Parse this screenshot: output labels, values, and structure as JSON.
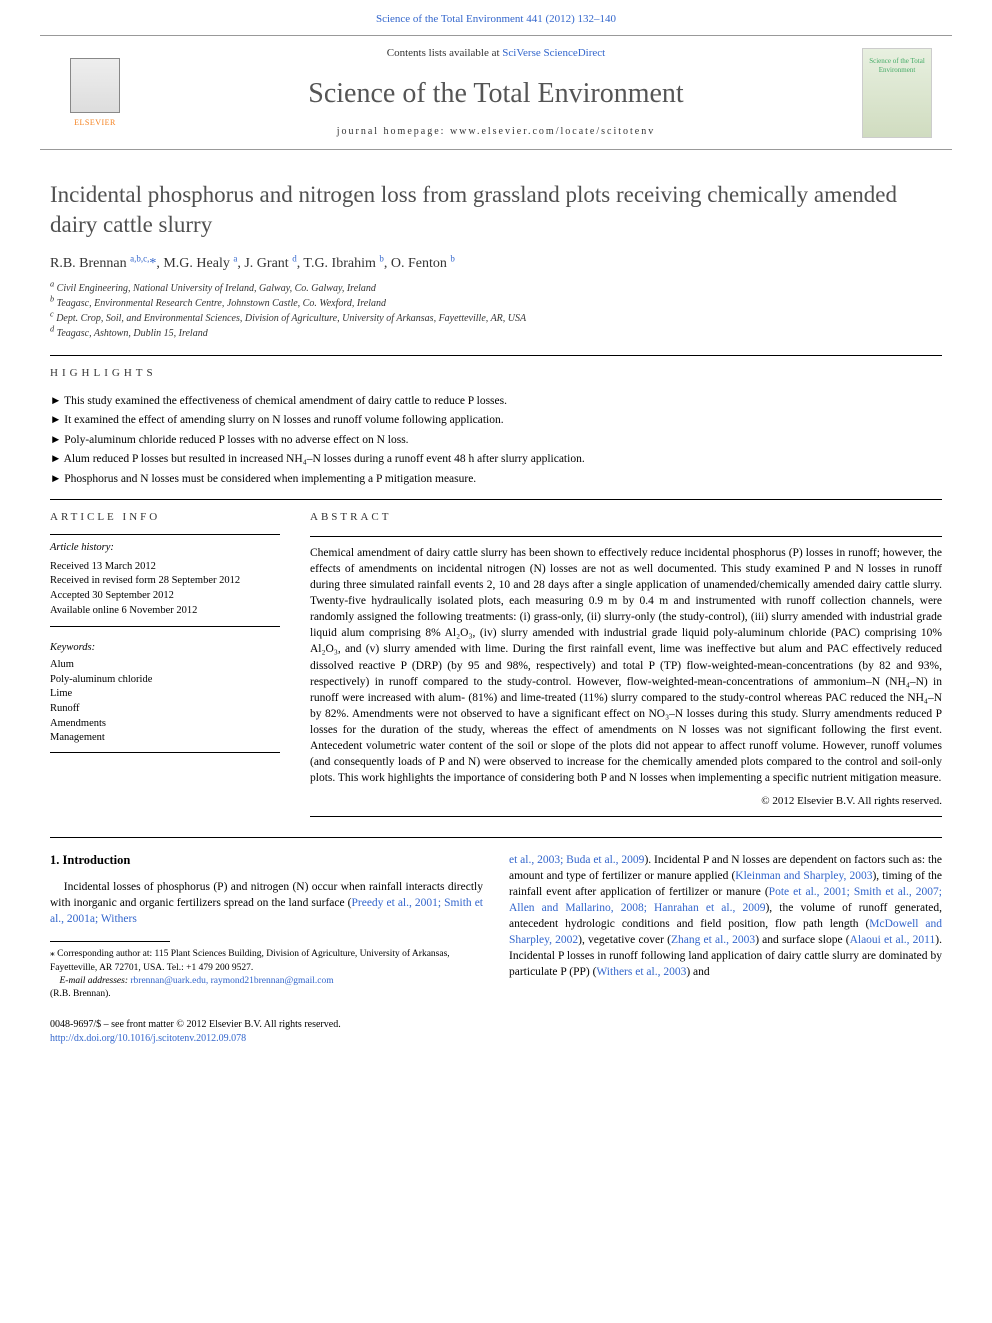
{
  "top_citation": "Science of the Total Environment 441 (2012) 132–140",
  "banner": {
    "contents_prefix": "Contents lists available at ",
    "contents_link": "SciVerse ScienceDirect",
    "journal_name": "Science of the Total Environment",
    "homepage_prefix": "journal homepage: ",
    "homepage_url": "www.elsevier.com/locate/scitotenv",
    "publisher": "ELSEVIER",
    "cover_text": "Science of the Total Environment"
  },
  "title": "Incidental phosphorus and nitrogen loss from grassland plots receiving chemically amended dairy cattle slurry",
  "authors_html": "R.B. Brennan <sup>a,b,c,</sup><span class='corr'>*</span>, M.G. Healy <sup>a</sup>, J. Grant <sup>d</sup>, T.G. Ibrahim <sup>b</sup>, O. Fenton <sup>b</sup>",
  "affiliations": [
    "a Civil Engineering, National University of Ireland, Galway, Co. Galway, Ireland",
    "b Teagasc, Environmental Research Centre, Johnstown Castle, Co. Wexford, Ireland",
    "c Dept. Crop, Soil, and Environmental Sciences, Division of Agriculture, University of Arkansas, Fayetteville, AR, USA",
    "d Teagasc, Ashtown, Dublin 15, Ireland"
  ],
  "highlights_label": "HIGHLIGHTS",
  "highlights": [
    "This study examined the effectiveness of chemical amendment of dairy cattle to reduce P losses.",
    "It examined the effect of amending slurry on N losses and runoff volume following application.",
    "Poly-aluminum chloride reduced P losses with no adverse effect on N loss.",
    "Alum reduced P losses but resulted in increased NH₄–N losses during a runoff event 48 h after slurry application.",
    "Phosphorus and N losses must be considered when implementing a P mitigation measure."
  ],
  "article_info_label": "ARTICLE INFO",
  "article_history_label": "Article history:",
  "article_history": [
    "Received 13 March 2012",
    "Received in revised form 28 September 2012",
    "Accepted 30 September 2012",
    "Available online 6 November 2012"
  ],
  "keywords_label": "Keywords:",
  "keywords": [
    "Alum",
    "Poly-aluminum chloride",
    "Lime",
    "Runoff",
    "Amendments",
    "Management"
  ],
  "abstract_label": "ABSTRACT",
  "abstract": "Chemical amendment of dairy cattle slurry has been shown to effectively reduce incidental phosphorus (P) losses in runoff; however, the effects of amendments on incidental nitrogen (N) losses are not as well documented. This study examined P and N losses in runoff during three simulated rainfall events 2, 10 and 28 days after a single application of unamended/chemically amended dairy cattle slurry. Twenty-five hydraulically isolated plots, each measuring 0.9 m by 0.4 m and instrumented with runoff collection channels, were randomly assigned the following treatments: (i) grass-only, (ii) slurry-only (the study-control), (iii) slurry amended with industrial grade liquid alum comprising 8% Al₂O₃, (iv) slurry amended with industrial grade liquid poly-aluminum chloride (PAC) comprising 10% Al₂O₃, and (v) slurry amended with lime. During the first rainfall event, lime was ineffective but alum and PAC effectively reduced dissolved reactive P (DRP) (by 95 and 98%, respectively) and total P (TP) flow-weighted-mean-concentrations (by 82 and 93%, respectively) in runoff compared to the study-control. However, flow-weighted-mean-concentrations of ammonium–N (NH₄–N) in runoff were increased with alum- (81%) and lime-treated (11%) slurry compared to the study-control whereas PAC reduced the NH₄–N by 82%. Amendments were not observed to have a significant effect on NO₃–N losses during this study. Slurry amendments reduced P losses for the duration of the study, whereas the effect of amendments on N losses was not significant following the first event. Antecedent volumetric water content of the soil or slope of the plots did not appear to affect runoff volume. However, runoff volumes (and consequently loads of P and N) were observed to increase for the chemically amended plots compared to the control and soil-only plots. This work highlights the importance of considering both P and N losses when implementing a specific nutrient mitigation measure.",
  "copyright": "© 2012 Elsevier B.V. All rights reserved.",
  "intro_heading": "1. Introduction",
  "intro_col1": "Incidental losses of phosphorus (P) and nitrogen (N) occur when rainfall interacts directly with inorganic and organic fertilizers spread on the land surface (<a href='#'>Preedy et al., 2001; Smith et al., 2001a; Withers</a>",
  "intro_col2": "<a href='#'>et al., 2003; Buda et al., 2009</a>). Incidental P and N losses are dependent on factors such as: the amount and type of fertilizer or manure applied (<a href='#'>Kleinman and Sharpley, 2003</a>), timing of the rainfall event after application of fertilizer or manure (<a href='#'>Pote et al., 2001; Smith et al., 2007; Allen and Mallarino, 2008; Hanrahan et al., 2009</a>), the volume of runoff generated, antecedent hydrologic conditions and field position, flow path length (<a href='#'>McDowell and Sharpley, 2002</a>), vegetative cover (<a href='#'>Zhang et al., 2003</a>) and surface slope (<a href='#'>Alaoui et al., 2011</a>). Incidental P losses in runoff following land application of dairy cattle slurry are dominated by particulate P (PP) (<a href='#'>Withers et al., 2003</a>) and",
  "corresponding": {
    "star": "⁎",
    "text": "Corresponding author at: 115 Plant Sciences Building, Division of Agriculture, University of Arkansas, Fayetteville, AR 72701, USA. Tel.: +1 479 200 9527.",
    "email_label": "E-mail addresses:",
    "emails": "rbrennan@uark.edu, raymond21brennan@gmail.com",
    "name": "(R.B. Brennan)."
  },
  "footer": {
    "issn": "0048-9697/$ – see front matter © 2012 Elsevier B.V. All rights reserved.",
    "doi": "http://dx.doi.org/10.1016/j.scitotenv.2012.09.078"
  }
}
